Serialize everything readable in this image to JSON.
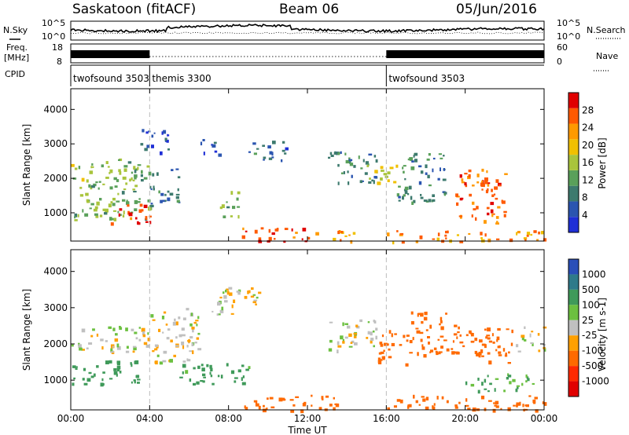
{
  "header": {
    "station": "Saskatoon (fitACF)",
    "beam": "Beam 06",
    "date": "05/Jun/2016"
  },
  "strip_labels": {
    "nsky": "N.Sky",
    "freq_line1": "Freq.",
    "freq_line2": "[MHz]",
    "cpid": "CPID",
    "nsearch": "N.Search",
    "nave": "Nave"
  },
  "noise_axis": {
    "left_ticks": [
      "10^5",
      "10^0"
    ],
    "right_ticks": [
      "10^5",
      "10^0"
    ]
  },
  "freq_axis": {
    "left_ticks": [
      "18",
      "8"
    ],
    "right_ticks": [
      "60",
      "0"
    ]
  },
  "cpid_segments": [
    {
      "label": "twofsound 3503",
      "start_hour": 0,
      "end_hour": 4
    },
    {
      "label": "themis 3300",
      "start_hour": 4,
      "end_hour": 16
    },
    {
      "label": "twofsound 3503",
      "start_hour": 16,
      "end_hour": 24
    }
  ],
  "x_axis": {
    "label": "Time UT",
    "ticks": [
      "00:00",
      "04:00",
      "08:00",
      "12:00",
      "16:00",
      "20:00",
      "00:00"
    ],
    "tick_hours": [
      0,
      4,
      8,
      12,
      16,
      20,
      24
    ],
    "range": [
      0,
      24
    ]
  },
  "power_colorbar": {
    "label": "Power [dB]",
    "ticks": [
      "4",
      "8",
      "12",
      "16",
      "20",
      "24",
      "28"
    ],
    "tick_values": [
      4,
      8,
      12,
      16,
      20,
      24,
      28
    ],
    "range": [
      0,
      32
    ],
    "colors": [
      "#1f2fd6",
      "#2b55b0",
      "#3d7a6e",
      "#5aa05a",
      "#a9c43c",
      "#f0c000",
      "#ff9a00",
      "#ff5a00",
      "#e00000"
    ]
  },
  "velocity_colorbar": {
    "label": "Velocity [m s-1]",
    "ticks": [
      "1000",
      "500",
      "100",
      "25",
      "-25",
      "-100",
      "-500",
      "-1000"
    ],
    "colors": [
      "#2a4fb8",
      "#2f7a8a",
      "#3f9a5a",
      "#6cc040",
      "#c0c0c0",
      "#ffa000",
      "#ff6a00",
      "#ff2a00",
      "#e00000"
    ]
  },
  "chart_data": [
    {
      "type": "heatmap",
      "title": "",
      "xlabel": "Time UT",
      "ylabel": "Slant Range [km]",
      "xlim": [
        0,
        24
      ],
      "ylim": [
        180,
        4600
      ],
      "y_ticks": [
        1000,
        2000,
        3000,
        4000
      ],
      "quantity": "Power",
      "units": "dB",
      "value_range": [
        0,
        32
      ],
      "regions": [
        {
          "t_start": 0.0,
          "t_end": 4.0,
          "r_min": 800,
          "r_max": 2600,
          "value": 14
        },
        {
          "t_start": 2.0,
          "t_end": 4.0,
          "r_min": 700,
          "r_max": 1300,
          "value": 28
        },
        {
          "t_start": 4.0,
          "t_end": 5.5,
          "r_min": 1200,
          "r_max": 2300,
          "value": 8
        },
        {
          "t_start": 3.5,
          "t_end": 5.0,
          "r_min": 2700,
          "r_max": 3500,
          "value": 5
        },
        {
          "t_start": 6.5,
          "t_end": 7.5,
          "r_min": 2700,
          "r_max": 3200,
          "value": 6
        },
        {
          "t_start": 7.5,
          "t_end": 8.5,
          "r_min": 900,
          "r_max": 1700,
          "value": 14
        },
        {
          "t_start": 9.0,
          "t_end": 11.0,
          "r_min": 2500,
          "r_max": 3100,
          "value": 7
        },
        {
          "t_start": 8.5,
          "t_end": 12.0,
          "r_min": 180,
          "r_max": 600,
          "value": 28
        },
        {
          "t_start": 12.0,
          "t_end": 14.5,
          "r_min": 180,
          "r_max": 500,
          "value": 22
        },
        {
          "t_start": 13.0,
          "t_end": 15.5,
          "r_min": 1800,
          "r_max": 2800,
          "value": 8
        },
        {
          "t_start": 15.0,
          "t_end": 16.5,
          "r_min": 1800,
          "r_max": 2400,
          "value": 18
        },
        {
          "t_start": 16.5,
          "t_end": 19.0,
          "r_min": 1300,
          "r_max": 2800,
          "value": 10
        },
        {
          "t_start": 19.5,
          "t_end": 22.0,
          "r_min": 700,
          "r_max": 2300,
          "value": 26
        },
        {
          "t_start": 16.0,
          "t_end": 24.0,
          "r_min": 180,
          "r_max": 500,
          "value": 24
        }
      ]
    },
    {
      "type": "heatmap",
      "title": "",
      "xlabel": "Time UT",
      "ylabel": "Slant Range [km]",
      "xlim": [
        0,
        24
      ],
      "ylim": [
        180,
        4600
      ],
      "y_ticks": [
        1000,
        2000,
        3000,
        4000
      ],
      "quantity": "Velocity",
      "units": "m s-1",
      "value_range": [
        -1000,
        1000
      ],
      "regions": [
        {
          "t_start": 0.0,
          "t_end": 4.0,
          "r_min": 1800,
          "r_max": 2500,
          "value": 0
        },
        {
          "t_start": 0.0,
          "t_end": 3.5,
          "r_min": 900,
          "r_max": 1600,
          "value": 150
        },
        {
          "t_start": 4.0,
          "t_end": 6.5,
          "r_min": 1500,
          "r_max": 3000,
          "value": 0
        },
        {
          "t_start": 7.0,
          "t_end": 9.5,
          "r_min": 2800,
          "r_max": 3600,
          "value": 0
        },
        {
          "t_start": 5.5,
          "t_end": 9.0,
          "r_min": 900,
          "r_max": 1500,
          "value": 150
        },
        {
          "t_start": 8.5,
          "t_end": 13.5,
          "r_min": 180,
          "r_max": 600,
          "value": -200
        },
        {
          "t_start": 13.0,
          "t_end": 15.5,
          "r_min": 1800,
          "r_max": 2700,
          "value": 0
        },
        {
          "t_start": 15.5,
          "t_end": 17.0,
          "r_min": 1400,
          "r_max": 2400,
          "value": -300
        },
        {
          "t_start": 17.0,
          "t_end": 19.5,
          "r_min": 1700,
          "r_max": 2900,
          "value": -400
        },
        {
          "t_start": 19.5,
          "t_end": 22.5,
          "r_min": 1500,
          "r_max": 2500,
          "value": -300
        },
        {
          "t_start": 20.0,
          "t_end": 23.5,
          "r_min": 700,
          "r_max": 1200,
          "value": 120
        },
        {
          "t_start": 16.0,
          "t_end": 24.0,
          "r_min": 180,
          "r_max": 600,
          "value": -200
        },
        {
          "t_start": 22.5,
          "t_end": 24.0,
          "r_min": 1800,
          "r_max": 2500,
          "value": 0
        }
      ]
    }
  ]
}
